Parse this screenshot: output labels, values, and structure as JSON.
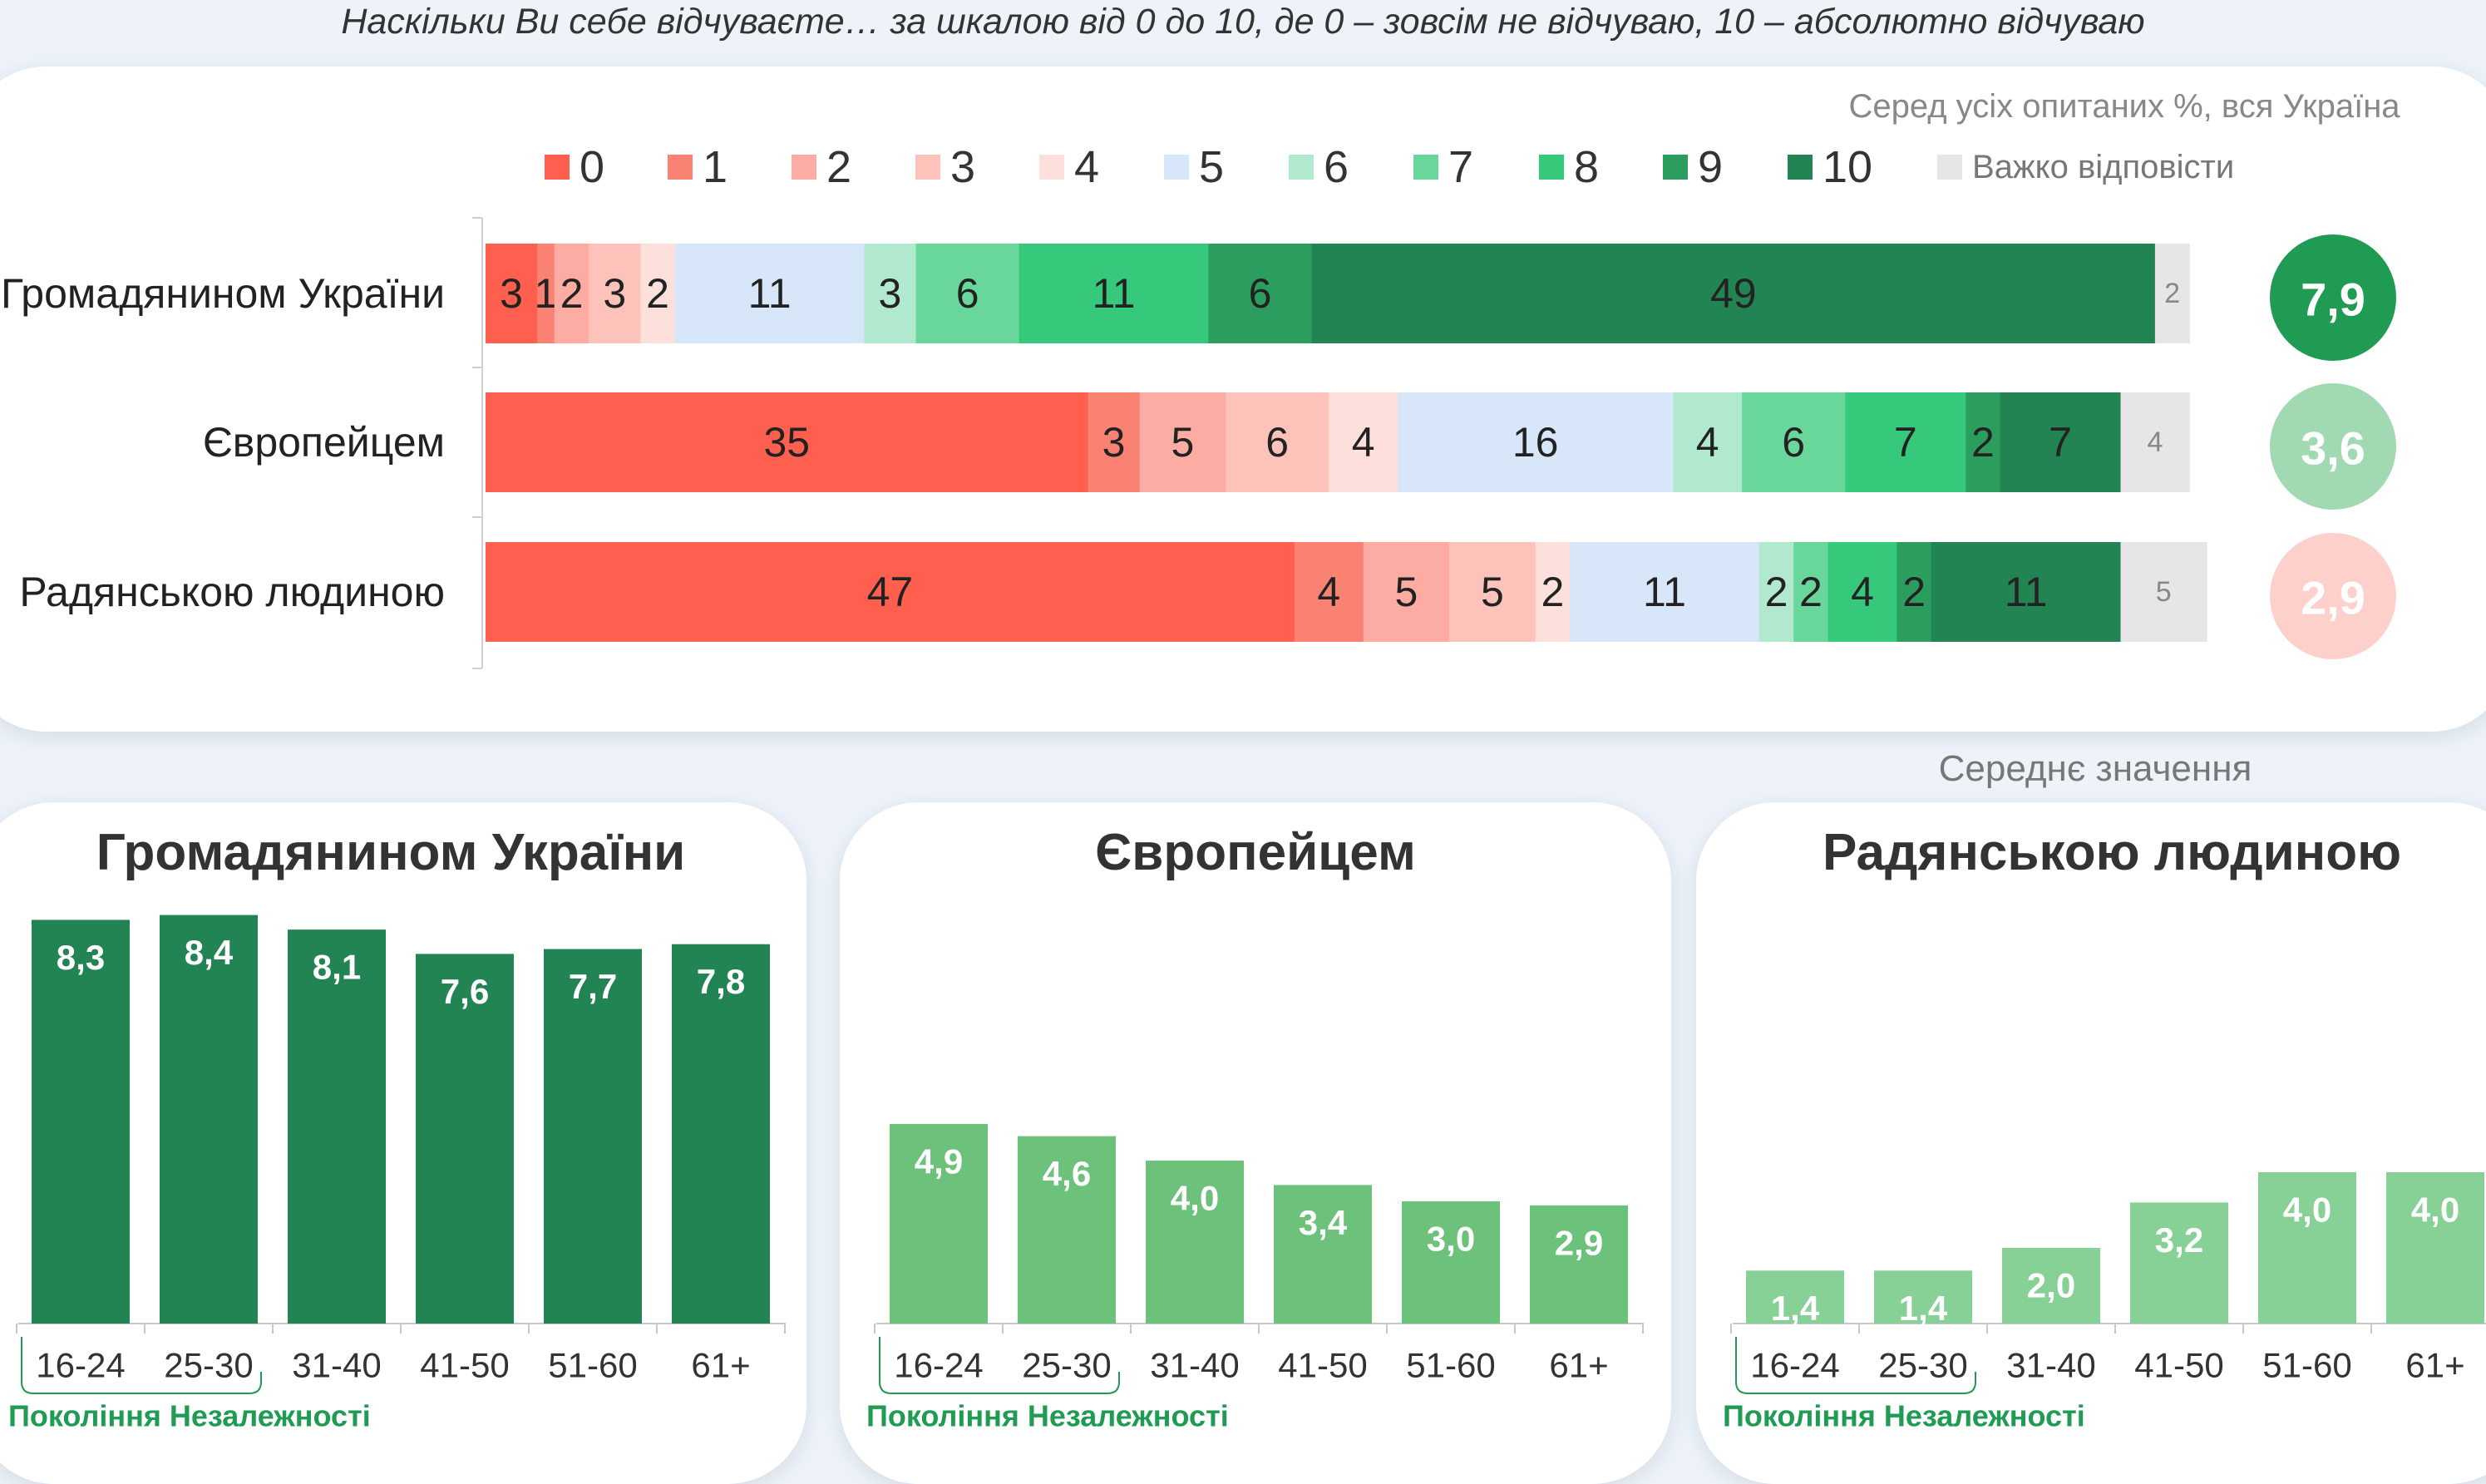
{
  "header": {
    "question": "Наскільки Ви себе відчуваєте… за шкалою від 0 до 10, де 0 – зовсім не відчуваю, 10 – абсолютно відчуваю",
    "base_note": "Серед усіх опитаних %, вся Україна",
    "mean_caption": "Середнє значення"
  },
  "colors": {
    "0": "#ff5f4f",
    "1": "#fa8273",
    "2": "#fcaca2",
    "3": "#fdc2ba",
    "4": "#fde0dc",
    "5": "#d7e6f8",
    "6": "#b0e9cd",
    "7": "#69d79c",
    "8": "#36c97c",
    "9": "#2a9d5f",
    "10": "#238453",
    "dk": "#e6e6e6",
    "mean_high": "#1f9b54",
    "mean_mid": "#a0d9b2",
    "mean_low": "#fdd0cc",
    "bar_dark": "#238453",
    "bar_mid": "#6cc17b",
    "bar_light": "#88d196",
    "generation": "#1f9b54"
  },
  "chart_data": [
    {
      "type": "bar",
      "orientation": "horizontal-stacked",
      "title": "",
      "legend_position": "top",
      "legend": [
        "0",
        "1",
        "2",
        "3",
        "4",
        "5",
        "6",
        "7",
        "8",
        "9",
        "10",
        "Важко відповісти"
      ],
      "series_keys": [
        "0",
        "1",
        "2",
        "3",
        "4",
        "5",
        "6",
        "7",
        "8",
        "9",
        "10",
        "dk"
      ],
      "rows": [
        {
          "label": "Громадянином України",
          "values": [
            3,
            1,
            2,
            3,
            2,
            11,
            3,
            6,
            11,
            6,
            49,
            2
          ],
          "labels": [
            "3",
            "1",
            "2",
            "3",
            "2",
            "11",
            "3",
            "6",
            "11",
            "6",
            "49",
            "2"
          ],
          "mean": "7,9",
          "mean_color": "mean_high",
          "mean_text_color": "#ffffff"
        },
        {
          "label": "Європейцем",
          "values": [
            35,
            3,
            5,
            6,
            4,
            16,
            4,
            6,
            7,
            2,
            7,
            4
          ],
          "labels": [
            "35",
            "3",
            "5",
            "6",
            "4",
            "16",
            "4",
            "6",
            "7",
            "2",
            "7",
            "4"
          ],
          "mean": "3,6",
          "mean_color": "mean_mid",
          "mean_text_color": "#ffffff"
        },
        {
          "label": "Радянською людиною",
          "values": [
            47,
            4,
            5,
            5,
            2,
            11,
            2,
            2,
            4,
            2,
            11,
            5
          ],
          "labels": [
            "47",
            "4",
            "5",
            "5",
            "2",
            "11",
            "2",
            "2",
            "4",
            "2",
            "11",
            "5"
          ],
          "mean": "2,9",
          "mean_color": "mean_low",
          "mean_text_color": "#ffffff"
        }
      ]
    },
    {
      "type": "bar",
      "title": "Громадянином України",
      "categories": [
        "16-24",
        "25-30",
        "31-40",
        "41-50",
        "51-60",
        "61+"
      ],
      "values": [
        8.3,
        8.4,
        8.1,
        7.6,
        7.7,
        7.8
      ],
      "labels": [
        "8,3",
        "8,4",
        "8,1",
        "7,6",
        "7,7",
        "7,8"
      ],
      "color": "bar_dark",
      "group_label": "Покоління Незалежності",
      "group_span": [
        "16-24",
        "25-30"
      ]
    },
    {
      "type": "bar",
      "title": "Європейцем",
      "categories": [
        "16-24",
        "25-30",
        "31-40",
        "41-50",
        "51-60",
        "61+"
      ],
      "values": [
        4.9,
        4.6,
        4.0,
        3.4,
        3.0,
        2.9
      ],
      "labels": [
        "4,9",
        "4,6",
        "4,0",
        "3,4",
        "3,0",
        "2,9"
      ],
      "color": "bar_mid",
      "group_label": "Покоління Незалежності",
      "group_span": [
        "16-24",
        "25-30"
      ]
    },
    {
      "type": "bar",
      "title": "Радянською людиною",
      "categories": [
        "16-24",
        "25-30",
        "31-40",
        "41-50",
        "51-60",
        "61+"
      ],
      "values": [
        1.4,
        1.4,
        2.0,
        3.2,
        4.0,
        4.0
      ],
      "labels": [
        "1,4",
        "1,4",
        "2,0",
        "3,2",
        "4,0",
        "4,0"
      ],
      "color": "bar_light",
      "group_label": "Покоління Незалежності",
      "group_span": [
        "16-24",
        "25-30"
      ]
    }
  ]
}
